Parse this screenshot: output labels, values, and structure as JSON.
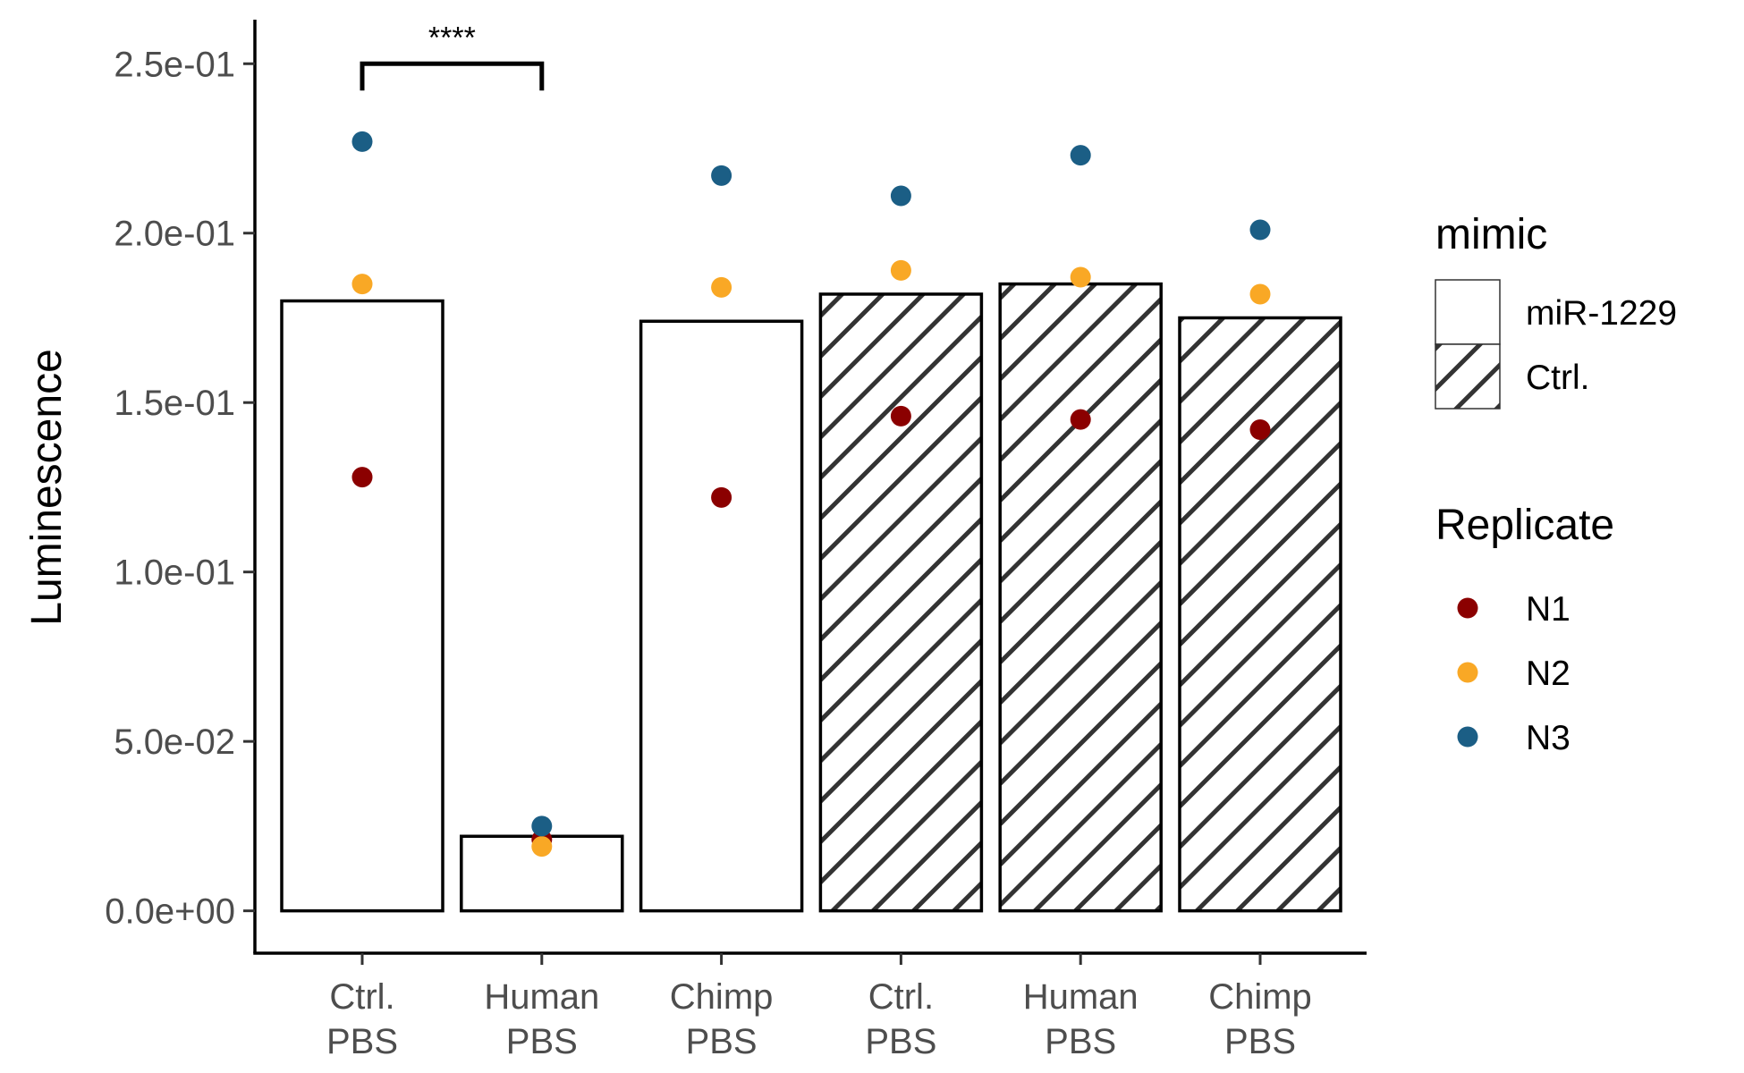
{
  "chart_data": {
    "type": "bar",
    "title": "",
    "xlabel": "",
    "ylabel": "Luminescence",
    "ylim": [
      -0.0125,
      0.263
    ],
    "yticks": [
      {
        "value": 0.0,
        "label": "0.0e+00"
      },
      {
        "value": 0.05,
        "label": "5.0e-02"
      },
      {
        "value": 0.1,
        "label": "1.0e-01"
      },
      {
        "value": 0.15,
        "label": "1.5e-01"
      },
      {
        "value": 0.2,
        "label": "2.0e-01"
      },
      {
        "value": 0.25,
        "label": "2.5e-01"
      }
    ],
    "categories": [
      {
        "line1": "Ctrl.",
        "line2": "PBS",
        "mimic": "miR-1229"
      },
      {
        "line1": "Human",
        "line2": "PBS",
        "mimic": "miR-1229"
      },
      {
        "line1": "Chimp",
        "line2": "PBS",
        "mimic": "miR-1229"
      },
      {
        "line1": "Ctrl.",
        "line2": "PBS",
        "mimic": "Ctrl."
      },
      {
        "line1": "Human",
        "line2": "PBS",
        "mimic": "Ctrl."
      },
      {
        "line1": "Chimp",
        "line2": "PBS",
        "mimic": "Ctrl."
      }
    ],
    "bar_values": [
      0.18,
      0.022,
      0.174,
      0.182,
      0.185,
      0.175
    ],
    "series": [
      {
        "name": "N1",
        "color": "#8b0000",
        "values": [
          0.128,
          0.021,
          0.122,
          0.146,
          0.145,
          0.142
        ]
      },
      {
        "name": "N2",
        "color": "#f9a825",
        "values": [
          0.185,
          0.019,
          0.184,
          0.189,
          0.187,
          0.182
        ]
      },
      {
        "name": "N3",
        "color": "#1b5e85",
        "values": [
          0.227,
          0.025,
          0.217,
          0.211,
          0.223,
          0.201
        ]
      }
    ],
    "significance": [
      {
        "from": 0,
        "to": 1,
        "y": 0.25,
        "label": "****"
      }
    ],
    "legends": {
      "fill": {
        "title": "mimic",
        "items": [
          {
            "label": "miR-1229",
            "pattern": "none"
          },
          {
            "label": "Ctrl.",
            "pattern": "diagonal-stripes"
          }
        ]
      },
      "color": {
        "title": "Replicate",
        "items": [
          {
            "label": "N1",
            "color": "#8b0000"
          },
          {
            "label": "N2",
            "color": "#f9a825"
          },
          {
            "label": "N3",
            "color": "#1b5e85"
          }
        ]
      }
    },
    "legend_position": "right",
    "grid": false
  }
}
